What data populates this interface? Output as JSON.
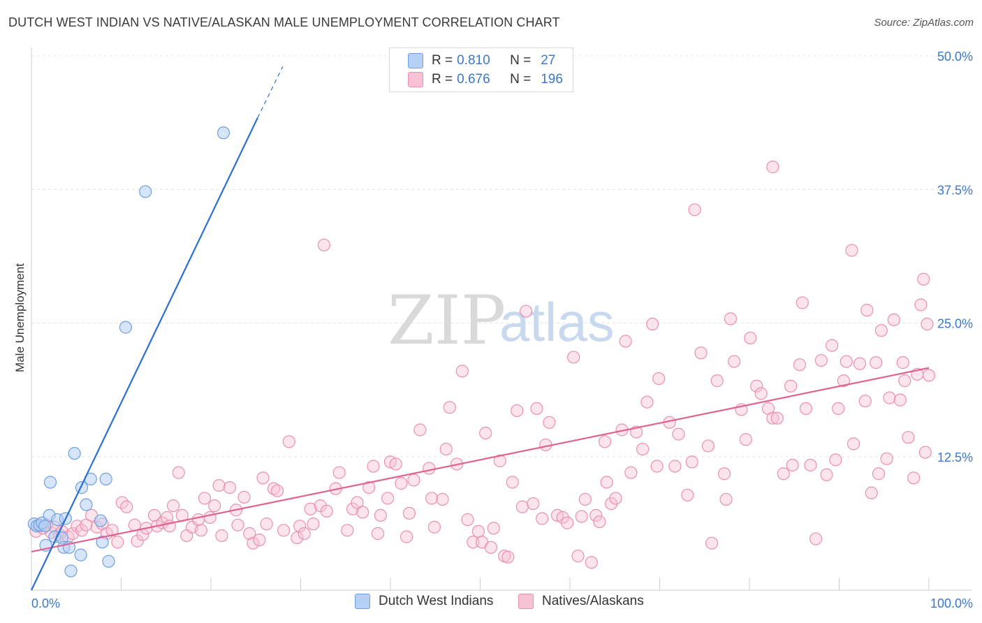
{
  "header": {
    "title": "DUTCH WEST INDIAN VS NATIVE/ALASKAN MALE UNEMPLOYMENT CORRELATION CHART",
    "source": "Source: ZipAtlas.com"
  },
  "watermark": {
    "zip": "ZIP",
    "atlas": "atlas"
  },
  "legend": {
    "rows": [
      {
        "r_label": "R =",
        "r_value": "0.810",
        "n_label": "N =",
        "n_value": "27",
        "color": "#b5d0f5"
      },
      {
        "r_label": "R =",
        "r_value": "0.676",
        "n_label": "N =",
        "n_value": "196",
        "color": "#f7c3d4"
      }
    ]
  },
  "bottom_legend": {
    "items": [
      {
        "label": "Dutch West Indians",
        "color": "#b5d0f5"
      },
      {
        "label": "Natives/Alaskans",
        "color": "#f7c3d4"
      }
    ]
  },
  "chart_data": {
    "type": "scatter",
    "title": "DUTCH WEST INDIAN VS NATIVE/ALASKAN MALE UNEMPLOYMENT CORRELATION CHART",
    "xlabel": "",
    "ylabel": "Male Unemployment",
    "xlim": [
      0,
      100
    ],
    "ylim": [
      0,
      50
    ],
    "x_tick_labels": [
      "0.0%",
      "100.0%"
    ],
    "y_ticks": [
      12.5,
      25.0,
      37.5,
      50.0
    ],
    "y_tick_labels": [
      "12.5%",
      "25.0%",
      "37.5%",
      "50.0%"
    ],
    "grid": true,
    "legend_position": "top-center",
    "colors": {
      "blue_fill": "#b5d0f5",
      "blue_stroke": "#6e9fde",
      "blue_line": "#2b6fd1",
      "pink_fill": "#f7c3d4",
      "pink_stroke": "#eb8fae",
      "pink_line": "#e0628f",
      "axis_label": "#3a78c9"
    },
    "series": [
      {
        "name": "Dutch West Indians",
        "r": 0.81,
        "n": 27,
        "trend": {
          "x0": 0.0,
          "y0": 0.0,
          "x1": 25.2,
          "y1": 44.2,
          "dash_to_x": 28.0,
          "dash_to_y": 49.0
        },
        "points": [
          [
            0.3,
            6.2
          ],
          [
            0.6,
            6.0
          ],
          [
            0.9,
            6.1
          ],
          [
            1.2,
            6.3
          ],
          [
            1.5,
            6.0
          ],
          [
            1.6,
            4.2
          ],
          [
            2.0,
            7.0
          ],
          [
            2.1,
            10.1
          ],
          [
            2.6,
            5.0
          ],
          [
            2.9,
            6.6
          ],
          [
            3.4,
            4.9
          ],
          [
            3.6,
            4.0
          ],
          [
            3.8,
            6.7
          ],
          [
            4.2,
            4.0
          ],
          [
            4.4,
            1.8
          ],
          [
            4.8,
            12.8
          ],
          [
            5.5,
            3.3
          ],
          [
            5.6,
            9.6
          ],
          [
            6.1,
            8.0
          ],
          [
            6.6,
            10.4
          ],
          [
            7.7,
            6.5
          ],
          [
            7.9,
            4.5
          ],
          [
            8.3,
            10.4
          ],
          [
            8.6,
            2.7
          ],
          [
            10.5,
            24.6
          ],
          [
            12.7,
            37.3
          ],
          [
            21.4,
            42.8
          ]
        ]
      },
      {
        "name": "Natives/Alaskans",
        "r": 0.676,
        "n": 196,
        "trend": {
          "x0": 0.0,
          "y0": 3.6,
          "x1": 100.0,
          "y1": 20.8
        },
        "points": [
          [
            0.5,
            5.5
          ],
          [
            0.9,
            6.0
          ],
          [
            1.3,
            5.8
          ],
          [
            1.7,
            6.1
          ],
          [
            2.2,
            5.4
          ],
          [
            2.6,
            5.9
          ],
          [
            3.1,
            5.2
          ],
          [
            3.4,
            5.5
          ],
          [
            4.1,
            5.0
          ],
          [
            4.6,
            5.3
          ],
          [
            5.1,
            6.0
          ],
          [
            5.6,
            5.6
          ],
          [
            6.1,
            6.1
          ],
          [
            6.7,
            7.0
          ],
          [
            7.3,
            5.9
          ],
          [
            7.9,
            6.2
          ],
          [
            8.4,
            5.3
          ],
          [
            9.0,
            5.6
          ],
          [
            9.6,
            4.5
          ],
          [
            10.1,
            8.2
          ],
          [
            10.6,
            7.8
          ],
          [
            11.5,
            6.1
          ],
          [
            11.8,
            4.6
          ],
          [
            12.4,
            5.2
          ],
          [
            12.8,
            5.8
          ],
          [
            13.7,
            7.0
          ],
          [
            14.0,
            6.0
          ],
          [
            14.6,
            6.3
          ],
          [
            15.1,
            6.8
          ],
          [
            15.4,
            6.0
          ],
          [
            15.8,
            7.9
          ],
          [
            16.4,
            11.0
          ],
          [
            16.8,
            7.0
          ],
          [
            17.3,
            5.1
          ],
          [
            17.9,
            5.9
          ],
          [
            18.6,
            6.6
          ],
          [
            18.9,
            5.6
          ],
          [
            19.3,
            8.6
          ],
          [
            19.9,
            6.8
          ],
          [
            20.4,
            7.9
          ],
          [
            20.9,
            9.8
          ],
          [
            21.2,
            5.1
          ],
          [
            22.1,
            9.6
          ],
          [
            22.8,
            7.5
          ],
          [
            23.0,
            6.1
          ],
          [
            23.7,
            8.7
          ],
          [
            24.3,
            5.3
          ],
          [
            24.7,
            4.4
          ],
          [
            25.4,
            4.7
          ],
          [
            25.8,
            10.5
          ],
          [
            26.2,
            6.2
          ],
          [
            27.0,
            9.5
          ],
          [
            27.4,
            9.3
          ],
          [
            28.1,
            5.6
          ],
          [
            28.7,
            13.9
          ],
          [
            29.6,
            4.9
          ],
          [
            29.9,
            6.0
          ],
          [
            30.4,
            5.3
          ],
          [
            31.1,
            7.6
          ],
          [
            31.4,
            6.2
          ],
          [
            32.2,
            7.9
          ],
          [
            32.6,
            32.3
          ],
          [
            32.9,
            7.4
          ],
          [
            33.9,
            9.5
          ],
          [
            34.3,
            11.0
          ],
          [
            35.2,
            5.6
          ],
          [
            35.8,
            7.6
          ],
          [
            36.3,
            8.2
          ],
          [
            36.9,
            7.3
          ],
          [
            37.6,
            9.6
          ],
          [
            38.1,
            11.6
          ],
          [
            38.6,
            5.3
          ],
          [
            38.9,
            7.0
          ],
          [
            39.7,
            8.6
          ],
          [
            40.0,
            12.0
          ],
          [
            40.6,
            11.8
          ],
          [
            41.2,
            10.0
          ],
          [
            41.8,
            5.0
          ],
          [
            42.1,
            7.2
          ],
          [
            42.6,
            10.3
          ],
          [
            43.3,
            15.0
          ],
          [
            44.3,
            11.4
          ],
          [
            44.6,
            8.6
          ],
          [
            44.9,
            5.9
          ],
          [
            45.8,
            8.5
          ],
          [
            46.2,
            13.2
          ],
          [
            46.6,
            17.1
          ],
          [
            47.4,
            11.8
          ],
          [
            48.0,
            20.5
          ],
          [
            48.6,
            6.6
          ],
          [
            49.2,
            4.5
          ],
          [
            49.8,
            5.5
          ],
          [
            50.2,
            4.5
          ],
          [
            50.6,
            14.7
          ],
          [
            51.2,
            4.0
          ],
          [
            51.5,
            5.8
          ],
          [
            52.2,
            12.1
          ],
          [
            52.7,
            3.2
          ],
          [
            53.1,
            3.1
          ],
          [
            53.6,
            10.1
          ],
          [
            54.1,
            16.8
          ],
          [
            54.7,
            7.8
          ],
          [
            55.1,
            26.1
          ],
          [
            55.9,
            8.1
          ],
          [
            56.3,
            17.0
          ],
          [
            56.9,
            6.7
          ],
          [
            57.3,
            13.6
          ],
          [
            57.7,
            15.7
          ],
          [
            58.6,
            7.0
          ],
          [
            59.2,
            6.8
          ],
          [
            59.7,
            6.3
          ],
          [
            60.4,
            21.8
          ],
          [
            60.9,
            3.2
          ],
          [
            61.3,
            6.9
          ],
          [
            61.7,
            8.5
          ],
          [
            62.4,
            2.6
          ],
          [
            62.9,
            7.0
          ],
          [
            63.3,
            6.4
          ],
          [
            63.9,
            13.9
          ],
          [
            64.1,
            10.1
          ],
          [
            64.6,
            8.1
          ],
          [
            65.1,
            8.6
          ],
          [
            65.8,
            15.0
          ],
          [
            66.2,
            23.3
          ],
          [
            66.8,
            11.0
          ],
          [
            67.4,
            14.8
          ],
          [
            68.1,
            13.2
          ],
          [
            68.6,
            17.6
          ],
          [
            69.2,
            24.9
          ],
          [
            69.7,
            11.6
          ],
          [
            69.9,
            19.8
          ],
          [
            71.1,
            15.7
          ],
          [
            71.7,
            11.6
          ],
          [
            72.1,
            14.6
          ],
          [
            73.1,
            8.9
          ],
          [
            73.6,
            12.0
          ],
          [
            73.9,
            35.6
          ],
          [
            74.6,
            22.2
          ],
          [
            75.4,
            13.5
          ],
          [
            75.8,
            4.4
          ],
          [
            76.4,
            19.6
          ],
          [
            77.2,
            10.9
          ],
          [
            77.4,
            8.5
          ],
          [
            77.9,
            25.4
          ],
          [
            78.3,
            21.4
          ],
          [
            79.1,
            16.9
          ],
          [
            79.6,
            14.1
          ],
          [
            80.1,
            23.6
          ],
          [
            80.8,
            19.1
          ],
          [
            81.3,
            18.4
          ],
          [
            82.1,
            17.0
          ],
          [
            82.6,
            16.1
          ],
          [
            83.1,
            16.1
          ],
          [
            83.8,
            10.9
          ],
          [
            84.6,
            19.1
          ],
          [
            84.8,
            11.7
          ],
          [
            85.6,
            21.1
          ],
          [
            85.9,
            26.9
          ],
          [
            86.3,
            17.0
          ],
          [
            86.8,
            11.7
          ],
          [
            87.4,
            4.8
          ],
          [
            88.0,
            21.5
          ],
          [
            88.6,
            10.8
          ],
          [
            89.2,
            22.9
          ],
          [
            89.6,
            12.2
          ],
          [
            89.9,
            17.0
          ],
          [
            90.5,
            19.6
          ],
          [
            90.8,
            21.4
          ],
          [
            91.4,
            31.8
          ],
          [
            91.6,
            13.7
          ],
          [
            92.3,
            21.2
          ],
          [
            92.9,
            17.7
          ],
          [
            93.1,
            26.2
          ],
          [
            93.6,
            9.1
          ],
          [
            94.1,
            21.3
          ],
          [
            94.4,
            10.9
          ],
          [
            94.7,
            24.3
          ],
          [
            95.3,
            12.3
          ],
          [
            95.6,
            18.0
          ],
          [
            96.1,
            25.3
          ],
          [
            96.8,
            17.8
          ],
          [
            97.1,
            21.3
          ],
          [
            97.3,
            19.6
          ],
          [
            97.7,
            14.3
          ],
          [
            98.3,
            10.5
          ],
          [
            98.7,
            20.2
          ],
          [
            99.1,
            26.7
          ],
          [
            99.4,
            29.1
          ],
          [
            99.6,
            12.9
          ],
          [
            99.8,
            24.9
          ],
          [
            100.0,
            20.1
          ],
          [
            82.6,
            39.6
          ]
        ]
      }
    ]
  }
}
